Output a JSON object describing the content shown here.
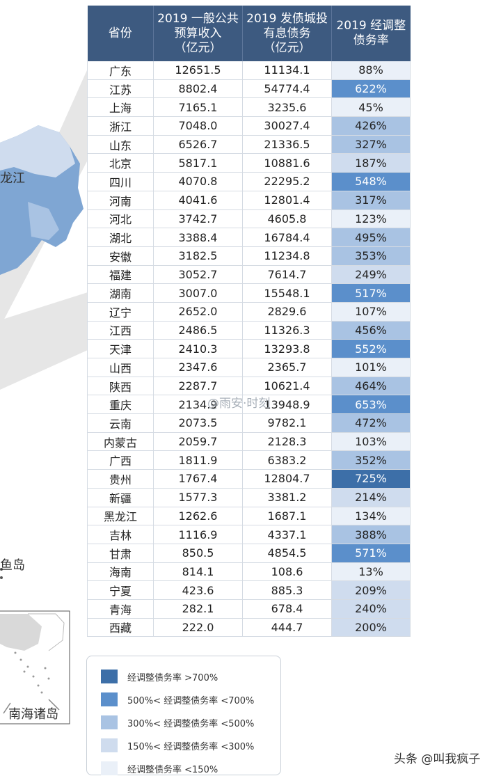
{
  "table": {
    "headers": [
      "省份",
      "2019 一般公共\n预算收入\n（亿元）",
      "2019 发债城投\n有息债务\n（亿元）",
      "2019 经调整\n债务率"
    ],
    "rows": [
      {
        "province": "广东",
        "revenue": "12651.5",
        "debt": "11134.1",
        "rate": "88%",
        "level": 1
      },
      {
        "province": "江苏",
        "revenue": "8802.4",
        "debt": "54774.4",
        "rate": "622%",
        "level": 4
      },
      {
        "province": "上海",
        "revenue": "7165.1",
        "debt": "3235.6",
        "rate": "45%",
        "level": 1
      },
      {
        "province": "浙江",
        "revenue": "7048.0",
        "debt": "30027.4",
        "rate": "426%",
        "level": 3
      },
      {
        "province": "山东",
        "revenue": "6526.7",
        "debt": "21336.5",
        "rate": "327%",
        "level": 3
      },
      {
        "province": "北京",
        "revenue": "5817.1",
        "debt": "10881.6",
        "rate": "187%",
        "level": 2
      },
      {
        "province": "四川",
        "revenue": "4070.8",
        "debt": "22295.2",
        "rate": "548%",
        "level": 4
      },
      {
        "province": "河南",
        "revenue": "4041.6",
        "debt": "12801.4",
        "rate": "317%",
        "level": 3
      },
      {
        "province": "河北",
        "revenue": "3742.7",
        "debt": "4605.8",
        "rate": "123%",
        "level": 1
      },
      {
        "province": "湖北",
        "revenue": "3388.4",
        "debt": "16784.4",
        "rate": "495%",
        "level": 3
      },
      {
        "province": "安徽",
        "revenue": "3182.5",
        "debt": "11234.8",
        "rate": "353%",
        "level": 3
      },
      {
        "province": "福建",
        "revenue": "3052.7",
        "debt": "7614.7",
        "rate": "249%",
        "level": 2
      },
      {
        "province": "湖南",
        "revenue": "3007.0",
        "debt": "15548.1",
        "rate": "517%",
        "level": 4
      },
      {
        "province": "辽宁",
        "revenue": "2652.0",
        "debt": "2829.6",
        "rate": "107%",
        "level": 1
      },
      {
        "province": "江西",
        "revenue": "2486.5",
        "debt": "11326.3",
        "rate": "456%",
        "level": 3
      },
      {
        "province": "天津",
        "revenue": "2410.3",
        "debt": "13293.8",
        "rate": "552%",
        "level": 4
      },
      {
        "province": "山西",
        "revenue": "2347.6",
        "debt": "2365.7",
        "rate": "101%",
        "level": 1
      },
      {
        "province": "陕西",
        "revenue": "2287.7",
        "debt": "10621.4",
        "rate": "464%",
        "level": 3
      },
      {
        "province": "重庆",
        "revenue": "2134.9",
        "debt": "13948.9",
        "rate": "653%",
        "level": 4
      },
      {
        "province": "云南",
        "revenue": "2073.5",
        "debt": "9782.1",
        "rate": "472%",
        "level": 3
      },
      {
        "province": "内蒙古",
        "revenue": "2059.7",
        "debt": "2128.3",
        "rate": "103%",
        "level": 1
      },
      {
        "province": "广西",
        "revenue": "1811.9",
        "debt": "6383.2",
        "rate": "352%",
        "level": 3
      },
      {
        "province": "贵州",
        "revenue": "1767.4",
        "debt": "12804.7",
        "rate": "725%",
        "level": 5
      },
      {
        "province": "新疆",
        "revenue": "1577.3",
        "debt": "3381.2",
        "rate": "214%",
        "level": 2
      },
      {
        "province": "黑龙江",
        "revenue": "1262.6",
        "debt": "1687.1",
        "rate": "134%",
        "level": 1
      },
      {
        "province": "吉林",
        "revenue": "1116.9",
        "debt": "4337.1",
        "rate": "388%",
        "level": 3
      },
      {
        "province": "甘肃",
        "revenue": "850.5",
        "debt": "4854.5",
        "rate": "571%",
        "level": 4
      },
      {
        "province": "海南",
        "revenue": "814.1",
        "debt": "108.6",
        "rate": "13%",
        "level": 1
      },
      {
        "province": "宁夏",
        "revenue": "423.6",
        "debt": "885.3",
        "rate": "209%",
        "level": 2
      },
      {
        "province": "青海",
        "revenue": "282.1",
        "debt": "678.4",
        "rate": "240%",
        "level": 2
      },
      {
        "province": "西藏",
        "revenue": "222.0",
        "debt": "444.7",
        "rate": "200%",
        "level": 2
      }
    ]
  },
  "legend": [
    {
      "label": "经调整债务率 >700%",
      "color": "#3d6fa8"
    },
    {
      "label": "500%< 经调整债务率 <700%",
      "color": "#5b8fcb"
    },
    {
      "label": "300%< 经调整债务率 <500%",
      "color": "#a9c3e3"
    },
    {
      "label": "150%< 经调整债务率 <300%",
      "color": "#cfdcee"
    },
    {
      "label": "经调整债务率 <150%",
      "color": "#eaf0f8"
    }
  ],
  "map_labels": {
    "heilongjiang_partial": "龙江",
    "island_partial": "鱼岛",
    "south_sea": "南海诸岛"
  },
  "watermarks": {
    "center": "@雨安·时刻",
    "bottom": "头条 @叫我疯子"
  },
  "colors": {
    "header_bg": "#3d5a80",
    "level5": "#3d6fa8",
    "level4": "#5b8fcb",
    "level3": "#a9c3e3",
    "level2": "#cfdcee",
    "level1": "#eaf0f8"
  }
}
